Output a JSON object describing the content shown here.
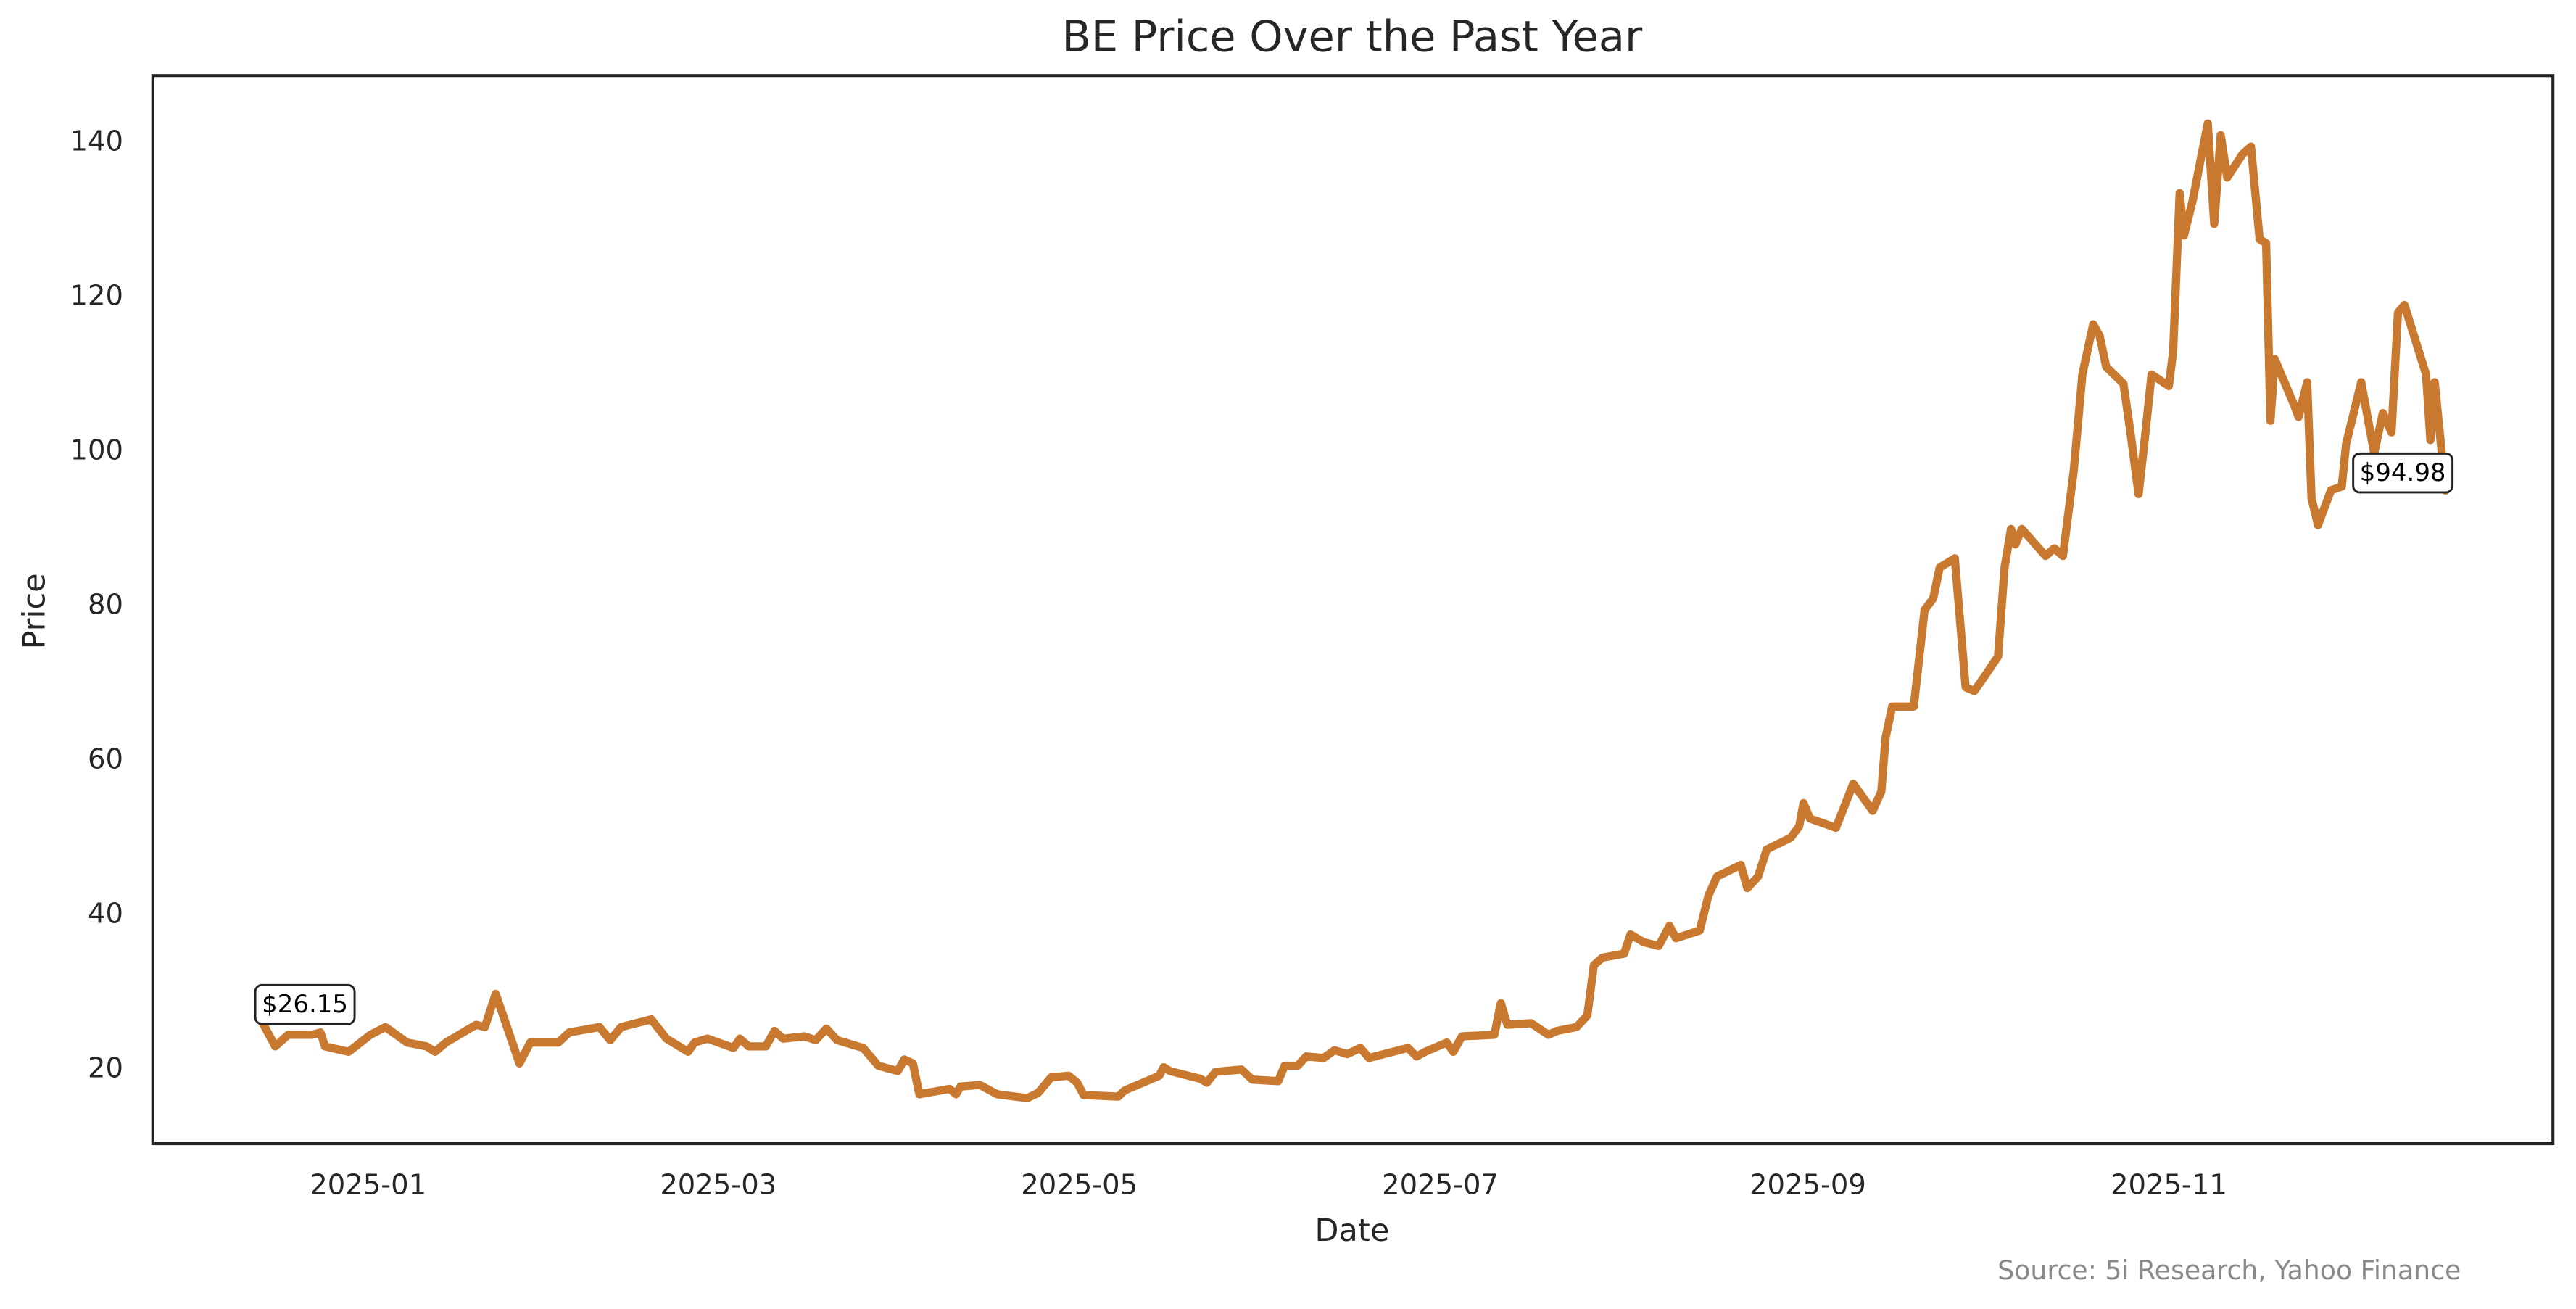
{
  "chart_data": {
    "type": "line",
    "title": "BE Price Over the Past Year",
    "xlabel": "Date",
    "ylabel": "Price",
    "source": "Source: 5i Research, Yahoo Finance",
    "xlim": [
      2024.9004,
      2026.0107
    ],
    "ylim": [
      10.4,
      148.7
    ],
    "xticks": [
      {
        "value": 2025.0,
        "label": "2025-01"
      },
      {
        "value": 2025.162,
        "label": "2025-03"
      },
      {
        "value": 2025.329,
        "label": "2025-05"
      },
      {
        "value": 2025.496,
        "label": "2025-07"
      },
      {
        "value": 2025.666,
        "label": "2025-09"
      },
      {
        "value": 2025.833,
        "label": "2025-11"
      }
    ],
    "yticks": [
      20,
      40,
      60,
      80,
      100,
      120,
      140
    ],
    "grid": false,
    "series": [
      {
        "name": "BE",
        "color": "#c8782f",
        "x": [
          2024.951,
          2024.957,
          2024.963,
          2024.974,
          2024.978,
          2024.98,
          2024.991,
          2025.001,
          2025.008,
          2025.018,
          2025.027,
          2025.031,
          2025.036,
          2025.05,
          2025.054,
          2025.059,
          2025.07,
          2025.075,
          2025.088,
          2025.093,
          2025.107,
          2025.112,
          2025.117,
          2025.131,
          2025.138,
          2025.148,
          2025.151,
          2025.157,
          2025.169,
          2025.172,
          2025.176,
          2025.184,
          2025.188,
          2025.192,
          2025.202,
          2025.207,
          2025.212,
          2025.217,
          2025.229,
          2025.236,
          2025.245,
          2025.248,
          2025.252,
          2025.255,
          2025.269,
          2025.272,
          2025.274,
          2025.283,
          2025.291,
          2025.305,
          2025.31,
          2025.316,
          2025.324,
          2025.328,
          2025.331,
          2025.347,
          2025.35,
          2025.366,
          2025.368,
          2025.371,
          2025.385,
          2025.388,
          2025.392,
          2025.404,
          2025.409,
          2025.421,
          2025.424,
          2025.43,
          2025.434,
          2025.442,
          2025.447,
          2025.453,
          2025.459,
          2025.463,
          2025.481,
          2025.485,
          2025.489,
          2025.499,
          2025.502,
          2025.506,
          2025.521,
          2025.524,
          2025.527,
          2025.538,
          2025.546,
          2025.55,
          2025.559,
          2025.564,
          2025.567,
          2025.571,
          2025.581,
          2025.584,
          2025.59,
          2025.597,
          2025.602,
          2025.605,
          2025.616,
          2025.62,
          2025.624,
          2025.635,
          2025.638,
          2025.643,
          2025.647,
          2025.658,
          2025.662,
          2025.664,
          2025.667,
          2025.679,
          2025.687,
          2025.696,
          2025.7,
          2025.702,
          2025.705,
          2025.715,
          2025.72,
          2025.724,
          2025.727,
          2025.734,
          2025.739,
          2025.743,
          2025.748,
          2025.754,
          2025.757,
          2025.76,
          2025.762,
          2025.765,
          2025.776,
          2025.78,
          2025.784,
          2025.789,
          2025.793,
          2025.798,
          2025.801,
          2025.804,
          2025.812,
          2025.815,
          2025.819,
          2025.822,
          2025.825,
          2025.833,
          2025.835,
          2025.838,
          2025.84,
          2025.844,
          2025.851,
          2025.854,
          2025.857,
          2025.86,
          2025.867,
          2025.871,
          2025.875,
          2025.878,
          2025.88,
          2025.882,
          2025.891,
          2025.893,
          2025.897,
          2025.899,
          2025.902,
          2025.908,
          2025.913,
          2025.915,
          2025.922,
          2025.928,
          2025.932,
          2025.936,
          2025.939,
          2025.942,
          2025.952,
          2025.954,
          2025.956,
          2025.961
        ],
        "values": [
          26.15,
          23,
          24.5,
          24.5,
          24.8,
          23,
          22.3,
          24.5,
          25.5,
          23.5,
          23,
          22.3,
          23.5,
          25.8,
          25.5,
          29.8,
          20.8,
          23.5,
          23.5,
          24.8,
          25.5,
          23.8,
          25.5,
          26.5,
          24,
          22.3,
          23.5,
          24,
          22.8,
          24,
          23,
          23,
          25,
          24,
          24.3,
          23.8,
          25.3,
          23.8,
          22.8,
          20.5,
          19.8,
          21.3,
          20.8,
          16.8,
          17.5,
          16.8,
          17.8,
          18,
          16.8,
          16.3,
          17,
          19,
          19.2,
          18.3,
          16.7,
          16.5,
          17.3,
          19.2,
          20.3,
          19.8,
          18.8,
          18.3,
          19.7,
          20,
          18.7,
          18.5,
          20.5,
          20.5,
          21.7,
          21.5,
          22.5,
          22,
          22.8,
          21.5,
          22.8,
          21.7,
          22.3,
          23.5,
          22.3,
          24.3,
          24.5,
          28.6,
          25.8,
          26,
          24.5,
          25,
          25.5,
          27,
          33.5,
          34.5,
          35,
          37.5,
          36.5,
          36,
          38.6,
          37,
          38,
          42.5,
          45,
          46.5,
          43.5,
          45,
          48.5,
          50,
          51.5,
          54.5,
          52.5,
          51.3,
          57,
          53.5,
          56,
          63,
          67,
          67,
          79.5,
          81,
          85,
          86.2,
          69.5,
          69,
          71,
          73.5,
          85,
          90,
          88,
          90,
          86.5,
          87.5,
          86.5,
          97.5,
          110,
          116.5,
          115,
          111,
          108.8,
          103,
          94.5,
          102,
          110,
          108.5,
          113,
          133.5,
          128,
          132.5,
          142.5,
          129.5,
          141,
          135.5,
          138.5,
          139.5,
          127.5,
          127,
          104,
          112,
          106,
          104.5,
          109,
          94,
          90.5,
          95,
          95.5,
          101,
          109,
          99.8,
          105,
          102.5,
          118,
          119,
          110,
          101.5,
          109,
          94.98
        ]
      }
    ],
    "annotations": [
      {
        "text": "$26.15",
        "x": 2024.951,
        "y": 26.15
      },
      {
        "text": "$94.98",
        "x": 2025.961,
        "y": 94.98
      }
    ]
  }
}
